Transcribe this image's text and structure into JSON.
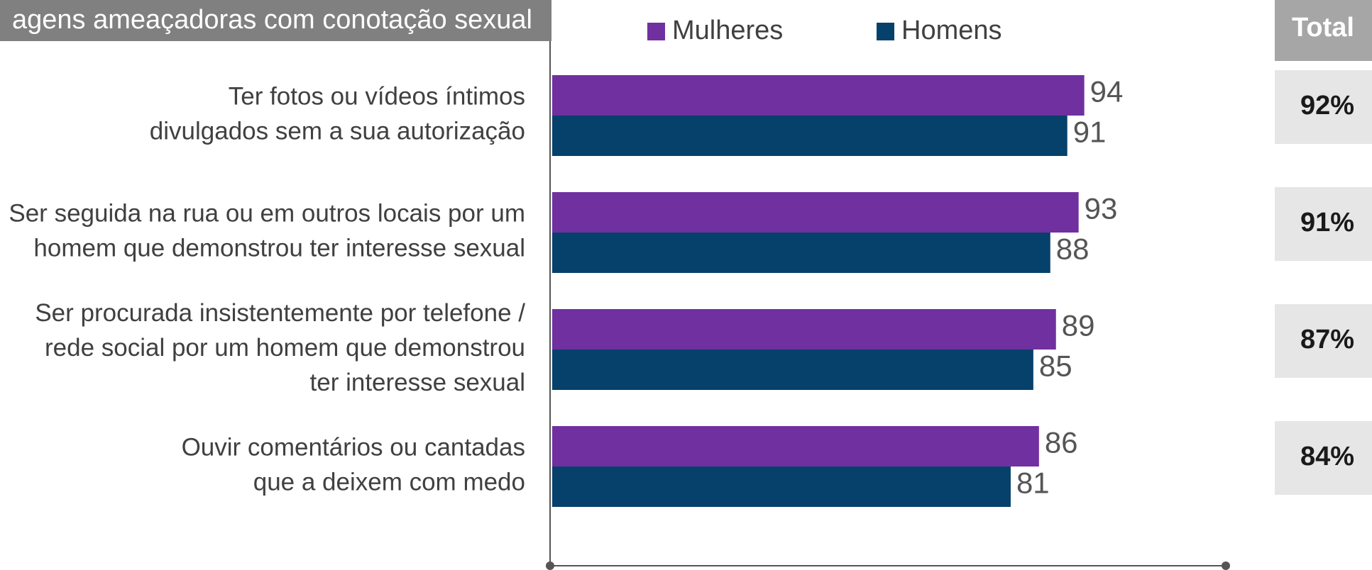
{
  "chart_data": {
    "type": "hbar",
    "title": "agens ameaçadoras com conotação sexual",
    "categories": [
      "Ter fotos ou vídeos íntimos\ndivulgados sem a sua autorização",
      "Ser seguida na rua ou em outros locais por um\nhomem que demonstrou ter interesse sexual",
      "Ser procurada insistentemente por telefone /\nrede social por um homem que demonstrou\nter interesse sexual",
      "Ouvir comentários ou cantadas\nque a deixem com medo"
    ],
    "series": [
      {
        "name": "Mulheres",
        "color": "#7030a0",
        "values": [
          94,
          93,
          89,
          86
        ]
      },
      {
        "name": "Homens",
        "color": "#06416c",
        "values": [
          91,
          88,
          85,
          81
        ]
      }
    ],
    "xlim": [
      0,
      119
    ],
    "total": {
      "title": "Total",
      "values": [
        92,
        91,
        87,
        84
      ],
      "value_labels": [
        "92%",
        "91%",
        "87%",
        "84%"
      ]
    }
  }
}
